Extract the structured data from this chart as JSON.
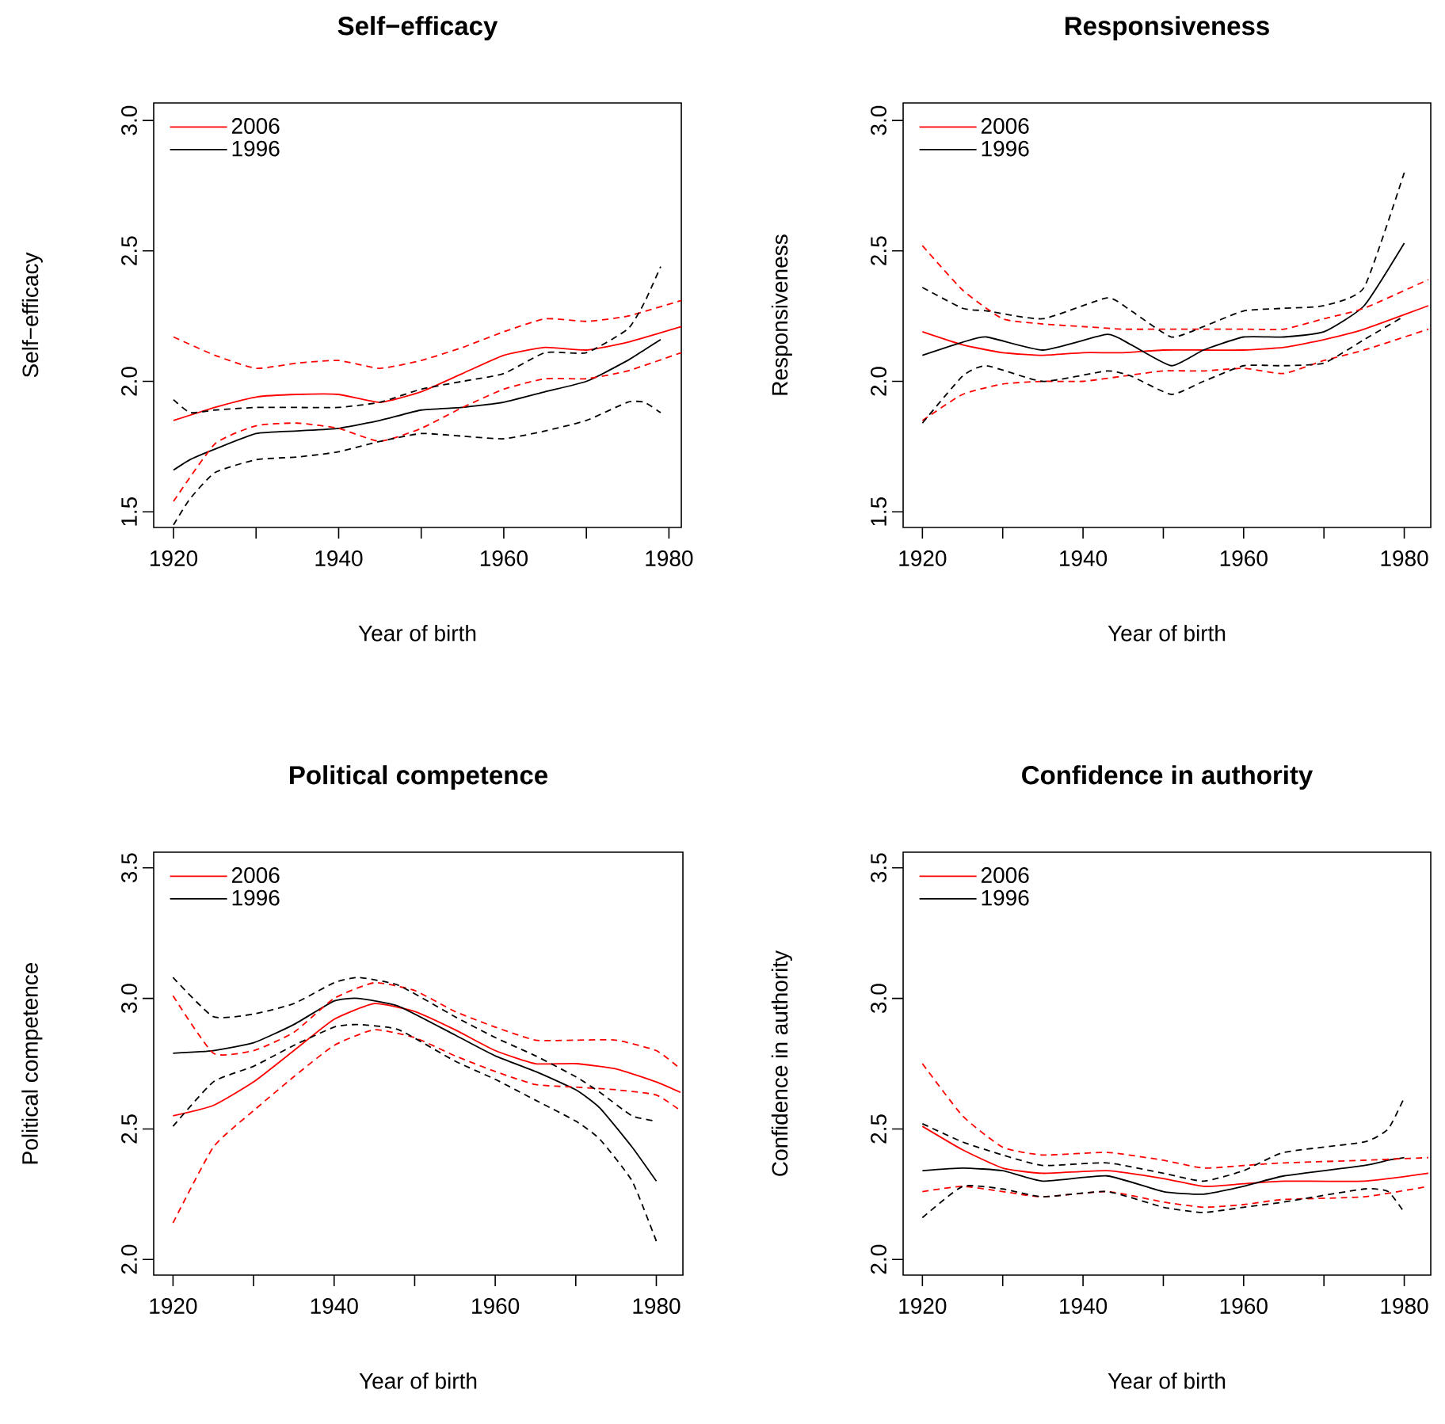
{
  "chart_data": [
    {
      "type": "line",
      "title": "Self−efficacy",
      "xlabel": "Year of birth",
      "ylabel": "Self−efficacy",
      "xlim": [
        1917.6,
        1981.5
      ],
      "ylim": [
        1.44,
        3.067
      ],
      "xticks": [
        1920,
        {
          "value": 1930,
          "label": null
        },
        1940,
        {
          "value": 1950,
          "label": null
        },
        1960,
        {
          "value": 1970,
          "label": null
        },
        1980
      ],
      "yticks": [
        {
          "value": 1.5,
          "label": "1.5"
        },
        {
          "value": 2.0,
          "label": "2.0"
        },
        {
          "value": 2.5,
          "label": "2.5"
        },
        {
          "value": 3.0,
          "label": "3.0"
        }
      ],
      "legend": "top left",
      "series": [
        {
          "name": "2006",
          "color": "#ff0000",
          "line_style": "solid",
          "x": [
            1920,
            1925,
            1930,
            1935,
            1940,
            1945,
            1950,
            1955,
            1960,
            1965,
            1970,
            1975,
            1981.5
          ],
          "values": [
            1.85,
            1.9,
            1.94,
            1.95,
            1.95,
            1.92,
            1.96,
            2.03,
            2.1,
            2.13,
            2.12,
            2.15,
            2.21
          ]
        },
        {
          "name": "1996",
          "color": "#000000",
          "line_style": "solid",
          "x": [
            1920,
            1922,
            1925,
            1930,
            1935,
            1940,
            1945,
            1950,
            1955,
            1960,
            1965,
            1970,
            1975,
            1977,
            1979
          ],
          "values": [
            1.66,
            1.7,
            1.74,
            1.8,
            1.81,
            1.82,
            1.85,
            1.89,
            1.9,
            1.92,
            1.96,
            2.0,
            2.08,
            2.12,
            2.16
          ]
        },
        {
          "color": "#ff0000",
          "line_style": "dashed",
          "x": [
            1920,
            1925,
            1930,
            1935,
            1940,
            1945,
            1950,
            1955,
            1960,
            1965,
            1970,
            1975,
            1981.5
          ],
          "values": [
            2.17,
            2.1,
            2.05,
            2.07,
            2.08,
            2.05,
            2.08,
            2.13,
            2.19,
            2.24,
            2.23,
            2.25,
            2.31
          ]
        },
        {
          "color": "#ff0000",
          "line_style": "dashed",
          "x": [
            1920,
            1925,
            1930,
            1935,
            1940,
            1945,
            1950,
            1955,
            1960,
            1965,
            1970,
            1975,
            1981.5
          ],
          "values": [
            1.54,
            1.76,
            1.83,
            1.84,
            1.82,
            1.77,
            1.82,
            1.9,
            1.97,
            2.01,
            2.01,
            2.04,
            2.11
          ]
        },
        {
          "color": "#000000",
          "line_style": "dashed",
          "x": [
            1920,
            1922,
            1925,
            1930,
            1935,
            1940,
            1945,
            1950,
            1955,
            1960,
            1965,
            1970,
            1975,
            1977,
            1979
          ],
          "values": [
            1.93,
            1.88,
            1.89,
            1.9,
            1.9,
            1.9,
            1.92,
            1.97,
            2.0,
            2.03,
            2.11,
            2.11,
            2.2,
            2.3,
            2.44
          ]
        },
        {
          "color": "#000000",
          "line_style": "dashed",
          "x": [
            1920,
            1922,
            1925,
            1930,
            1935,
            1940,
            1945,
            1950,
            1955,
            1960,
            1965,
            1970,
            1975,
            1977,
            1979
          ],
          "values": [
            1.45,
            1.55,
            1.65,
            1.7,
            1.71,
            1.73,
            1.77,
            1.8,
            1.79,
            1.78,
            1.81,
            1.85,
            1.92,
            1.92,
            1.88
          ]
        }
      ]
    },
    {
      "type": "line",
      "title": "Responsiveness",
      "xlabel": "Year of birth",
      "ylabel": "Responsiveness",
      "xlim": [
        1917.6,
        1983.3
      ],
      "ylim": [
        1.44,
        3.067
      ],
      "xticks": [
        1920,
        {
          "value": 1930,
          "label": null
        },
        1940,
        {
          "value": 1950,
          "label": null
        },
        1960,
        {
          "value": 1970,
          "label": null
        },
        1980
      ],
      "yticks": [
        {
          "value": 1.5,
          "label": "1.5"
        },
        {
          "value": 2.0,
          "label": "2.0"
        },
        {
          "value": 2.5,
          "label": "2.5"
        },
        {
          "value": 3.0,
          "label": "3.0"
        }
      ],
      "legend": "top left",
      "series": [
        {
          "name": "2006",
          "color": "#ff0000",
          "line_style": "solid",
          "x": [
            1920,
            1925,
            1930,
            1935,
            1940,
            1945,
            1950,
            1955,
            1960,
            1965,
            1970,
            1975,
            1983
          ],
          "values": [
            2.19,
            2.14,
            2.11,
            2.1,
            2.11,
            2.11,
            2.12,
            2.12,
            2.12,
            2.13,
            2.16,
            2.2,
            2.29
          ]
        },
        {
          "name": "1996",
          "color": "#000000",
          "line_style": "solid",
          "x": [
            1920,
            1925,
            1928,
            1935,
            1943,
            1946,
            1951,
            1955,
            1960,
            1965,
            1970,
            1975,
            1980
          ],
          "values": [
            2.1,
            2.15,
            2.17,
            2.12,
            2.18,
            2.14,
            2.06,
            2.12,
            2.17,
            2.17,
            2.19,
            2.29,
            2.53
          ]
        },
        {
          "color": "#ff0000",
          "line_style": "dashed",
          "x": [
            1920,
            1925,
            1930,
            1935,
            1940,
            1945,
            1950,
            1955,
            1960,
            1965,
            1970,
            1975,
            1983
          ],
          "values": [
            2.52,
            2.35,
            2.24,
            2.22,
            2.21,
            2.2,
            2.2,
            2.2,
            2.2,
            2.2,
            2.24,
            2.28,
            2.39
          ]
        },
        {
          "color": "#ff0000",
          "line_style": "dashed",
          "x": [
            1920,
            1925,
            1930,
            1935,
            1940,
            1945,
            1950,
            1955,
            1960,
            1965,
            1970,
            1975,
            1983
          ],
          "values": [
            1.85,
            1.95,
            1.99,
            2.0,
            2.0,
            2.02,
            2.04,
            2.04,
            2.05,
            2.03,
            2.08,
            2.12,
            2.2
          ]
        },
        {
          "color": "#000000",
          "line_style": "dashed",
          "x": [
            1920,
            1925,
            1928,
            1935,
            1943,
            1946,
            1951,
            1955,
            1960,
            1965,
            1970,
            1975,
            1980
          ],
          "values": [
            2.36,
            2.28,
            2.27,
            2.24,
            2.32,
            2.27,
            2.17,
            2.21,
            2.27,
            2.28,
            2.29,
            2.36,
            2.8
          ]
        },
        {
          "color": "#000000",
          "line_style": "dashed",
          "x": [
            1920,
            1925,
            1928,
            1935,
            1943,
            1946,
            1951,
            1955,
            1960,
            1965,
            1970,
            1975,
            1980
          ],
          "values": [
            1.84,
            2.02,
            2.06,
            2.0,
            2.04,
            2.02,
            1.95,
            2.0,
            2.06,
            2.06,
            2.07,
            2.16,
            2.25
          ]
        }
      ]
    },
    {
      "type": "line",
      "title": "Political competence",
      "xlabel": "Year of birth",
      "ylabel": "Political competence",
      "xlim": [
        1917.6,
        1983.3
      ],
      "ylim": [
        1.94,
        3.56
      ],
      "xticks": [
        1920,
        {
          "value": 1930,
          "label": null
        },
        1940,
        {
          "value": 1950,
          "label": null
        },
        1960,
        {
          "value": 1970,
          "label": null
        },
        1980
      ],
      "yticks": [
        {
          "value": 2.0,
          "label": "2.0"
        },
        {
          "value": 2.5,
          "label": "2.5"
        },
        {
          "value": 3.0,
          "label": "3.0"
        },
        {
          "value": 3.5,
          "label": "3.5"
        }
      ],
      "legend": "top left",
      "series": [
        {
          "name": "2006",
          "color": "#ff0000",
          "line_style": "solid",
          "x": [
            1920,
            1925,
            1930,
            1935,
            1940,
            1945,
            1950,
            1955,
            1960,
            1965,
            1970,
            1975,
            1980,
            1983
          ],
          "values": [
            2.55,
            2.59,
            2.68,
            2.8,
            2.92,
            2.98,
            2.95,
            2.88,
            2.8,
            2.75,
            2.75,
            2.73,
            2.68,
            2.64
          ]
        },
        {
          "name": "1996",
          "color": "#000000",
          "line_style": "solid",
          "x": [
            1920,
            1925,
            1930,
            1935,
            1940,
            1943,
            1948,
            1955,
            1960,
            1965,
            1970,
            1973,
            1977,
            1980
          ],
          "values": [
            2.79,
            2.8,
            2.83,
            2.9,
            2.99,
            3.0,
            2.97,
            2.86,
            2.78,
            2.72,
            2.65,
            2.58,
            2.43,
            2.3
          ]
        },
        {
          "color": "#ff0000",
          "line_style": "dashed",
          "x": [
            1920,
            1925,
            1930,
            1935,
            1940,
            1945,
            1950,
            1955,
            1960,
            1965,
            1970,
            1975,
            1980,
            1983
          ],
          "values": [
            3.01,
            2.79,
            2.8,
            2.87,
            3.0,
            3.06,
            3.03,
            2.95,
            2.89,
            2.84,
            2.84,
            2.84,
            2.8,
            2.73
          ]
        },
        {
          "color": "#ff0000",
          "line_style": "dashed",
          "x": [
            1920,
            1925,
            1930,
            1935,
            1940,
            1945,
            1950,
            1955,
            1960,
            1965,
            1970,
            1975,
            1980,
            1983
          ],
          "values": [
            2.14,
            2.43,
            2.57,
            2.7,
            2.82,
            2.88,
            2.85,
            2.78,
            2.72,
            2.67,
            2.66,
            2.65,
            2.63,
            2.57
          ]
        },
        {
          "color": "#000000",
          "line_style": "dashed",
          "x": [
            1920,
            1925,
            1930,
            1935,
            1940,
            1943,
            1948,
            1955,
            1960,
            1965,
            1970,
            1973,
            1977,
            1980
          ],
          "values": [
            3.08,
            2.93,
            2.94,
            2.98,
            3.06,
            3.08,
            3.05,
            2.93,
            2.85,
            2.78,
            2.7,
            2.64,
            2.55,
            2.53
          ]
        },
        {
          "color": "#000000",
          "line_style": "dashed",
          "x": [
            1920,
            1925,
            1930,
            1935,
            1940,
            1943,
            1948,
            1955,
            1960,
            1965,
            1970,
            1973,
            1977,
            1980
          ],
          "values": [
            2.51,
            2.68,
            2.74,
            2.82,
            2.89,
            2.9,
            2.88,
            2.76,
            2.69,
            2.61,
            2.53,
            2.46,
            2.3,
            2.07
          ]
        }
      ]
    },
    {
      "type": "line",
      "title": "Confidence in authority",
      "xlabel": "Year of birth",
      "ylabel": "Confidence in authority",
      "xlim": [
        1917.6,
        1983.3
      ],
      "ylim": [
        1.94,
        3.56
      ],
      "xticks": [
        1920,
        {
          "value": 1930,
          "label": null
        },
        1940,
        {
          "value": 1950,
          "label": null
        },
        1960,
        {
          "value": 1970,
          "label": null
        },
        1980
      ],
      "yticks": [
        {
          "value": 2.0,
          "label": "2.0"
        },
        {
          "value": 2.5,
          "label": "2.5"
        },
        {
          "value": 3.0,
          "label": "3.0"
        },
        {
          "value": 3.5,
          "label": "3.5"
        }
      ],
      "legend": "top left",
      "series": [
        {
          "name": "2006",
          "color": "#ff0000",
          "line_style": "solid",
          "x": [
            1920,
            1925,
            1930,
            1935,
            1943,
            1950,
            1955,
            1960,
            1965,
            1975,
            1983
          ],
          "values": [
            2.51,
            2.42,
            2.35,
            2.33,
            2.34,
            2.31,
            2.28,
            2.29,
            2.3,
            2.3,
            2.33
          ]
        },
        {
          "name": "1996",
          "color": "#000000",
          "line_style": "solid",
          "x": [
            1920,
            1925,
            1930,
            1935,
            1943,
            1950,
            1955,
            1960,
            1965,
            1975,
            1978,
            1980
          ],
          "values": [
            2.34,
            2.35,
            2.34,
            2.3,
            2.32,
            2.26,
            2.25,
            2.28,
            2.32,
            2.36,
            2.38,
            2.39
          ]
        },
        {
          "color": "#ff0000",
          "line_style": "dashed",
          "x": [
            1920,
            1925,
            1930,
            1935,
            1943,
            1950,
            1955,
            1960,
            1965,
            1975,
            1983
          ],
          "values": [
            2.75,
            2.55,
            2.43,
            2.4,
            2.41,
            2.38,
            2.35,
            2.36,
            2.37,
            2.38,
            2.39
          ]
        },
        {
          "color": "#ff0000",
          "line_style": "dashed",
          "x": [
            1920,
            1925,
            1930,
            1935,
            1943,
            1950,
            1955,
            1960,
            1965,
            1975,
            1983
          ],
          "values": [
            2.26,
            2.28,
            2.26,
            2.24,
            2.26,
            2.22,
            2.2,
            2.21,
            2.23,
            2.24,
            2.28
          ]
        },
        {
          "color": "#000000",
          "line_style": "dashed",
          "x": [
            1920,
            1925,
            1930,
            1935,
            1943,
            1950,
            1955,
            1960,
            1965,
            1975,
            1978,
            1980
          ],
          "values": [
            2.52,
            2.45,
            2.4,
            2.36,
            2.37,
            2.33,
            2.3,
            2.34,
            2.41,
            2.45,
            2.5,
            2.62
          ]
        },
        {
          "color": "#000000",
          "line_style": "dashed",
          "x": [
            1920,
            1925,
            1930,
            1935,
            1943,
            1950,
            1955,
            1960,
            1965,
            1975,
            1978,
            1980
          ],
          "values": [
            2.16,
            2.28,
            2.27,
            2.24,
            2.26,
            2.2,
            2.18,
            2.2,
            2.22,
            2.27,
            2.26,
            2.18
          ]
        }
      ]
    }
  ]
}
